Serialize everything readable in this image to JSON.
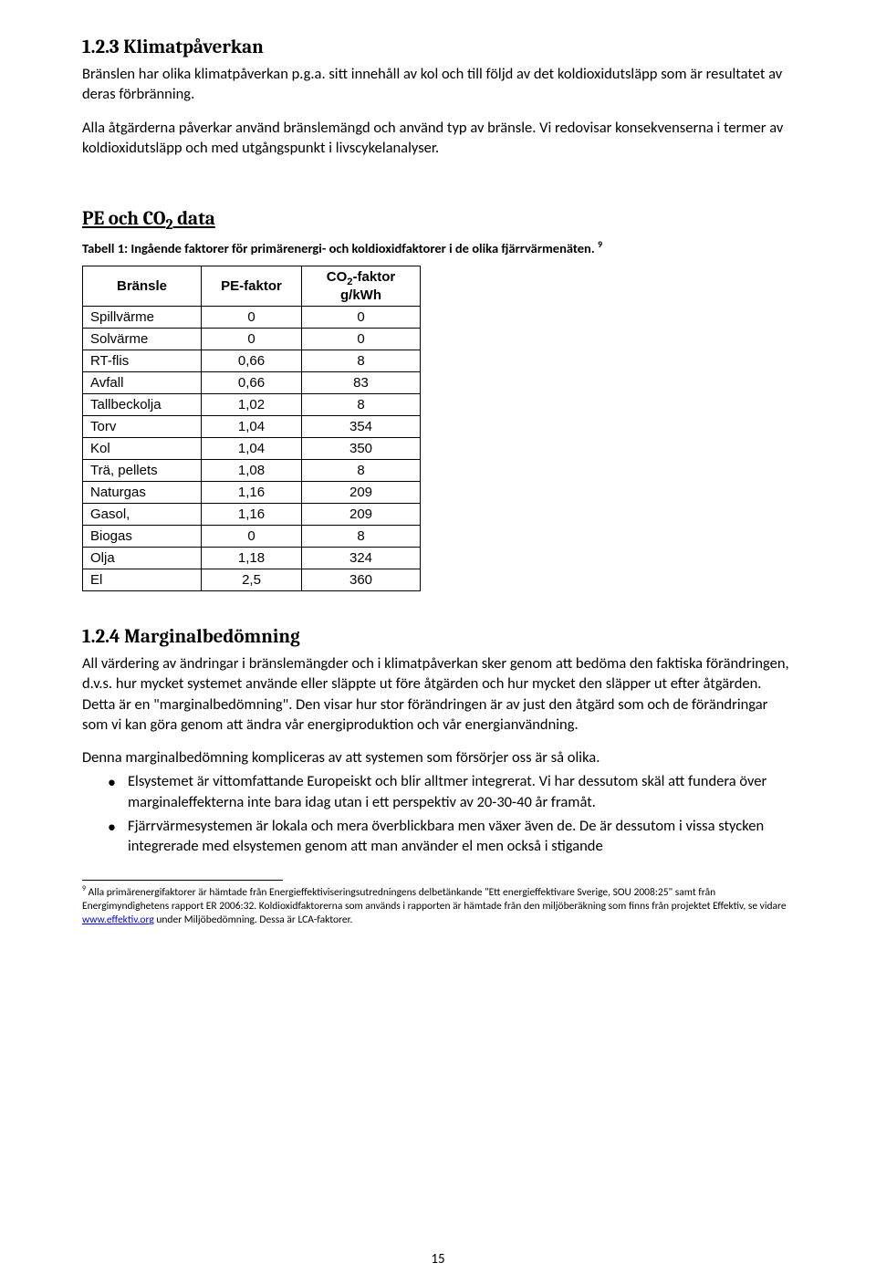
{
  "section1": {
    "heading": "1.2.3 Klimatpåverkan",
    "para1": "Bränslen har olika klimatpåverkan p.g.a. sitt innehåll av kol och till följd av det koldioxidutsläpp som är resultatet av deras förbränning.",
    "para2": "Alla åtgärderna påverkar använd bränslemängd och använd typ av bränsle. Vi redovisar konsekvenserna i termer av koldioxidutsläpp och med utgångspunkt i livscykelanalyser."
  },
  "data_section": {
    "heading_prefix": "PE och CO",
    "heading_sub": "2",
    "heading_suffix": " data",
    "caption_prefix": "Tabell 1: Ingående faktorer för primärenergi- och koldioxidfaktorer i de olika fjärrvärmenäten. ",
    "caption_fn": "9"
  },
  "table": {
    "col_fuel": "Bränsle",
    "col_pe": "PE-faktor",
    "col_co2_l1_pre": "CO",
    "col_co2_l1_sub": "2",
    "col_co2_l1_post": "-faktor",
    "col_co2_l2": "g/kWh",
    "rows": [
      {
        "fuel": "Spillvärme",
        "pe": "0",
        "co2": "0"
      },
      {
        "fuel": "Solvärme",
        "pe": "0",
        "co2": "0"
      },
      {
        "fuel": "RT-flis",
        "pe": "0,66",
        "co2": "8"
      },
      {
        "fuel": "Avfall",
        "pe": "0,66",
        "co2": "83"
      },
      {
        "fuel": "Tallbeckolja",
        "pe": "1,02",
        "co2": "8"
      },
      {
        "fuel": "Torv",
        "pe": "1,04",
        "co2": "354"
      },
      {
        "fuel": "Kol",
        "pe": "1,04",
        "co2": "350"
      },
      {
        "fuel": "Trä, pellets",
        "pe": "1,08",
        "co2": "8"
      },
      {
        "fuel": "Naturgas",
        "pe": "1,16",
        "co2": "209"
      },
      {
        "fuel": "Gasol,",
        "pe": "1,16",
        "co2": "209"
      },
      {
        "fuel": "Biogas",
        "pe": "0",
        "co2": "8"
      },
      {
        "fuel": "Olja",
        "pe": "1,18",
        "co2": "324"
      },
      {
        "fuel": "El",
        "pe": "2,5",
        "co2": "360"
      }
    ]
  },
  "section2": {
    "heading": "1.2.4 Marginalbedömning",
    "para1": "All värdering av ändringar i bränslemängder och i klimatpåverkan sker genom att bedöma den faktiska förändringen, d.v.s. hur mycket systemet använde eller släppte ut före åtgärden och hur mycket den släpper ut efter åtgärden. Detta är en \"marginalbedömning\". Den visar hur stor förändringen är av just den åtgärd som och de förändringar som vi kan göra genom att ändra vår energiproduktion och vår energianvändning.",
    "para2": "Denna marginalbedömning kompliceras av att systemen som försörjer oss är så olika.",
    "bullets": [
      "Elsystemet är vittomfattande Europeiskt och blir alltmer integrerat. Vi har dessutom skäl att fundera över marginaleffekterna inte bara idag utan i ett perspektiv av 20-30-40 år framåt.",
      "Fjärrvärmesystemen är lokala och mera överblickbara men växer även de. De är dessutom i vissa stycken integrerade med elsystemen genom att man använder el men också i stigande"
    ]
  },
  "footnote": {
    "ref": "9",
    "text_before_link": " Alla primärenergifaktorer är hämtade från Energieffektiviseringsutredningens delbetänkande \"Ett energieffektivare Sverige, SOU 2008:25\" samt från Energimyndighetens rapport ER 2006:32. Koldioxidfaktorerna som används i rapporten är hämtade från den miljöberäkning som finns från projektet Effektiv, se vidare ",
    "link_text": "www.effektiv.org",
    "text_after_link": " under Miljöbedömning. Dessa är LCA-faktorer."
  },
  "page_number": "15"
}
